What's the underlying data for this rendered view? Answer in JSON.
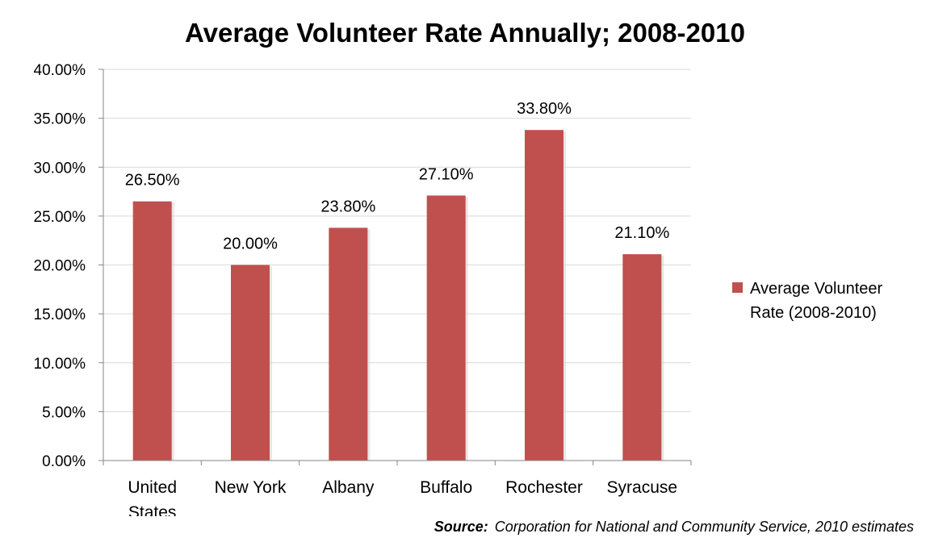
{
  "chart_data": {
    "type": "bar",
    "title": "Average Volunteer Rate Annually; 2008-2010",
    "categories": [
      "United States",
      "New York",
      "Albany",
      "Buffalo",
      "Rochester",
      "Syracuse"
    ],
    "category_lines": [
      [
        "United",
        "States"
      ],
      [
        "New York"
      ],
      [
        "Albany"
      ],
      [
        "Buffalo"
      ],
      [
        "Rochester"
      ],
      [
        "Syracuse"
      ]
    ],
    "series": [
      {
        "name": "Average Volunteer Rate (2008-2010)",
        "legend_lines": [
          "Average Volunteer",
          "Rate (2008-2010)"
        ],
        "values": [
          26.5,
          20.0,
          23.8,
          27.1,
          33.8,
          21.1
        ],
        "data_labels": [
          "26.50%",
          "20.00%",
          "23.80%",
          "27.10%",
          "33.80%",
          "21.10%"
        ],
        "color": "#C0504D"
      }
    ],
    "ylim": [
      0,
      40
    ],
    "yticks": [
      0,
      5,
      10,
      15,
      20,
      25,
      30,
      35,
      40
    ],
    "ytick_labels": [
      "0.00%",
      "5.00%",
      "10.00%",
      "15.00%",
      "20.00%",
      "25.00%",
      "30.00%",
      "35.00%",
      "40.00%"
    ],
    "grid": true,
    "legend_position": "right",
    "xlabel": "",
    "ylabel": ""
  },
  "source": {
    "label": "Source:",
    "text": "Corporation for National and Community Service, 2010 estimates"
  }
}
